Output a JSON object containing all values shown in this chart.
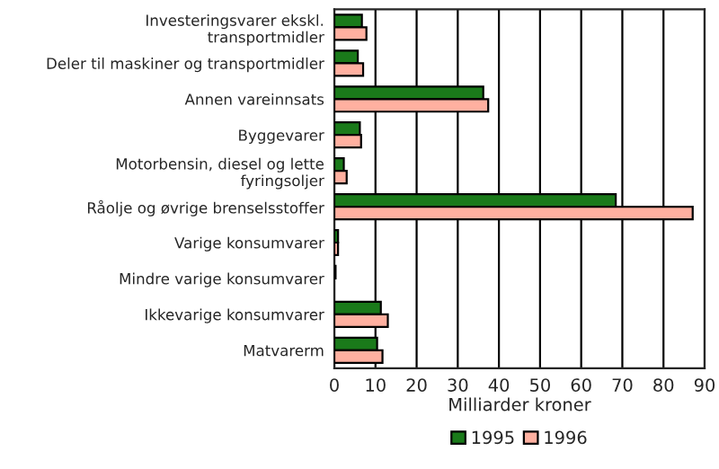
{
  "chart_data": {
    "type": "bar",
    "orientation": "horizontal",
    "xlabel": "Milliarder kroner",
    "categories": [
      "Investeringsvarer ekskl.\ntransportmidler",
      "Deler til maskiner og transportmidler",
      "Annen vareinnsats",
      "Byggevarer",
      "Motorbensin, diesel og lette\nfyringsoljer",
      "Råolje og øvrige brenselsstoffer",
      "Varige konsumvarer",
      "Mindre varige konsumvarer",
      "Ikkevarige konsumvarer",
      "Matvarerm"
    ],
    "series": [
      {
        "name": "1995",
        "color": "#1a7a1a",
        "values": [
          6.7,
          5.7,
          36.2,
          6.2,
          2.3,
          68.4,
          0.9,
          0.3,
          11.3,
          10.4
        ]
      },
      {
        "name": "1996",
        "color": "#ffb0a0",
        "values": [
          7.8,
          7.0,
          37.4,
          6.5,
          3.0,
          87.1,
          0.9,
          null,
          13.0,
          11.7
        ]
      }
    ],
    "xlim": [
      0,
      90
    ],
    "xticks": [
      0,
      10,
      20,
      30,
      40,
      50,
      60,
      70,
      80,
      90
    ],
    "grid": "x",
    "legend": "bottom"
  }
}
